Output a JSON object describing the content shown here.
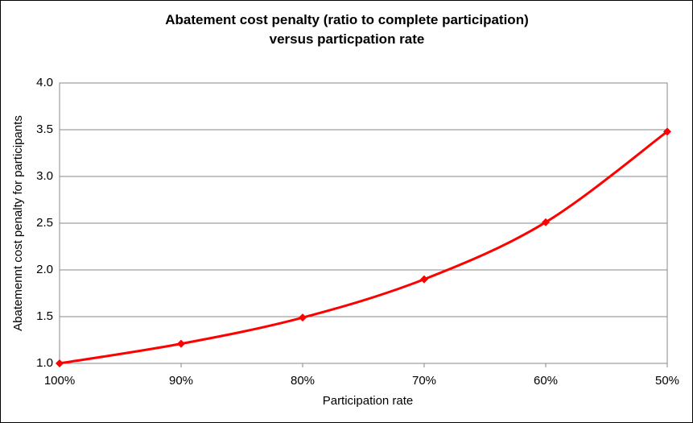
{
  "chart_data": {
    "type": "line",
    "title": "Abatement cost penalty (ratio to complete participation) versus particpation rate",
    "x_label": "Participation rate",
    "y_label": "Abatemennt cost penalty for participants",
    "categories": [
      "100%",
      "90%",
      "80%",
      "70%",
      "60%",
      "50%"
    ],
    "series": [
      {
        "name": "Abatement cost penalty",
        "color": "#ff0000",
        "values": [
          1.0,
          1.21,
          1.49,
          1.9,
          2.51,
          3.48
        ]
      }
    ],
    "ylim": [
      1.0,
      4.0
    ],
    "yticks": [
      {
        "value": 1,
        "label": "1.0"
      },
      {
        "value": 1.5,
        "label": "1.5"
      },
      {
        "value": 2,
        "label": "2.0"
      },
      {
        "value": 2.5,
        "label": "2.5"
      },
      {
        "value": 3,
        "label": "3.0"
      },
      {
        "value": 3.5,
        "label": "3.5"
      },
      {
        "value": 4,
        "label": "4.0"
      }
    ],
    "grid": true
  }
}
